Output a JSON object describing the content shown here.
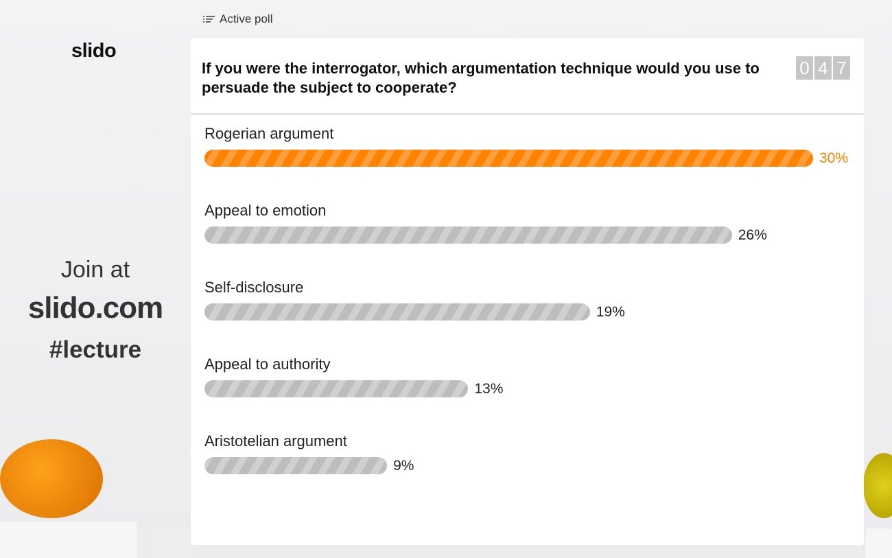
{
  "brand": {
    "logo": "slido"
  },
  "join": {
    "line1": "Join at",
    "site": "slido.com",
    "code": "#lecture"
  },
  "header": {
    "icon": "list-icon",
    "label": "Active poll"
  },
  "poll": {
    "question": "If you were the interrogator, which argumentation technique would you use to persuade the subject to cooperate?",
    "countdown": [
      "0",
      "4",
      "7"
    ],
    "accent": "#ff8200",
    "options": [
      {
        "label": "Rogerian argument",
        "percent": 30,
        "percent_label": "30%",
        "leading": true
      },
      {
        "label": "Appeal to emotion",
        "percent": 26,
        "percent_label": "26%",
        "leading": false
      },
      {
        "label": "Self-disclosure",
        "percent": 19,
        "percent_label": "19%",
        "leading": false
      },
      {
        "label": "Appeal to authority",
        "percent": 13,
        "percent_label": "13%",
        "leading": false
      },
      {
        "label": "Aristotelian argument",
        "percent": 9,
        "percent_label": "9%",
        "leading": false
      }
    ]
  }
}
